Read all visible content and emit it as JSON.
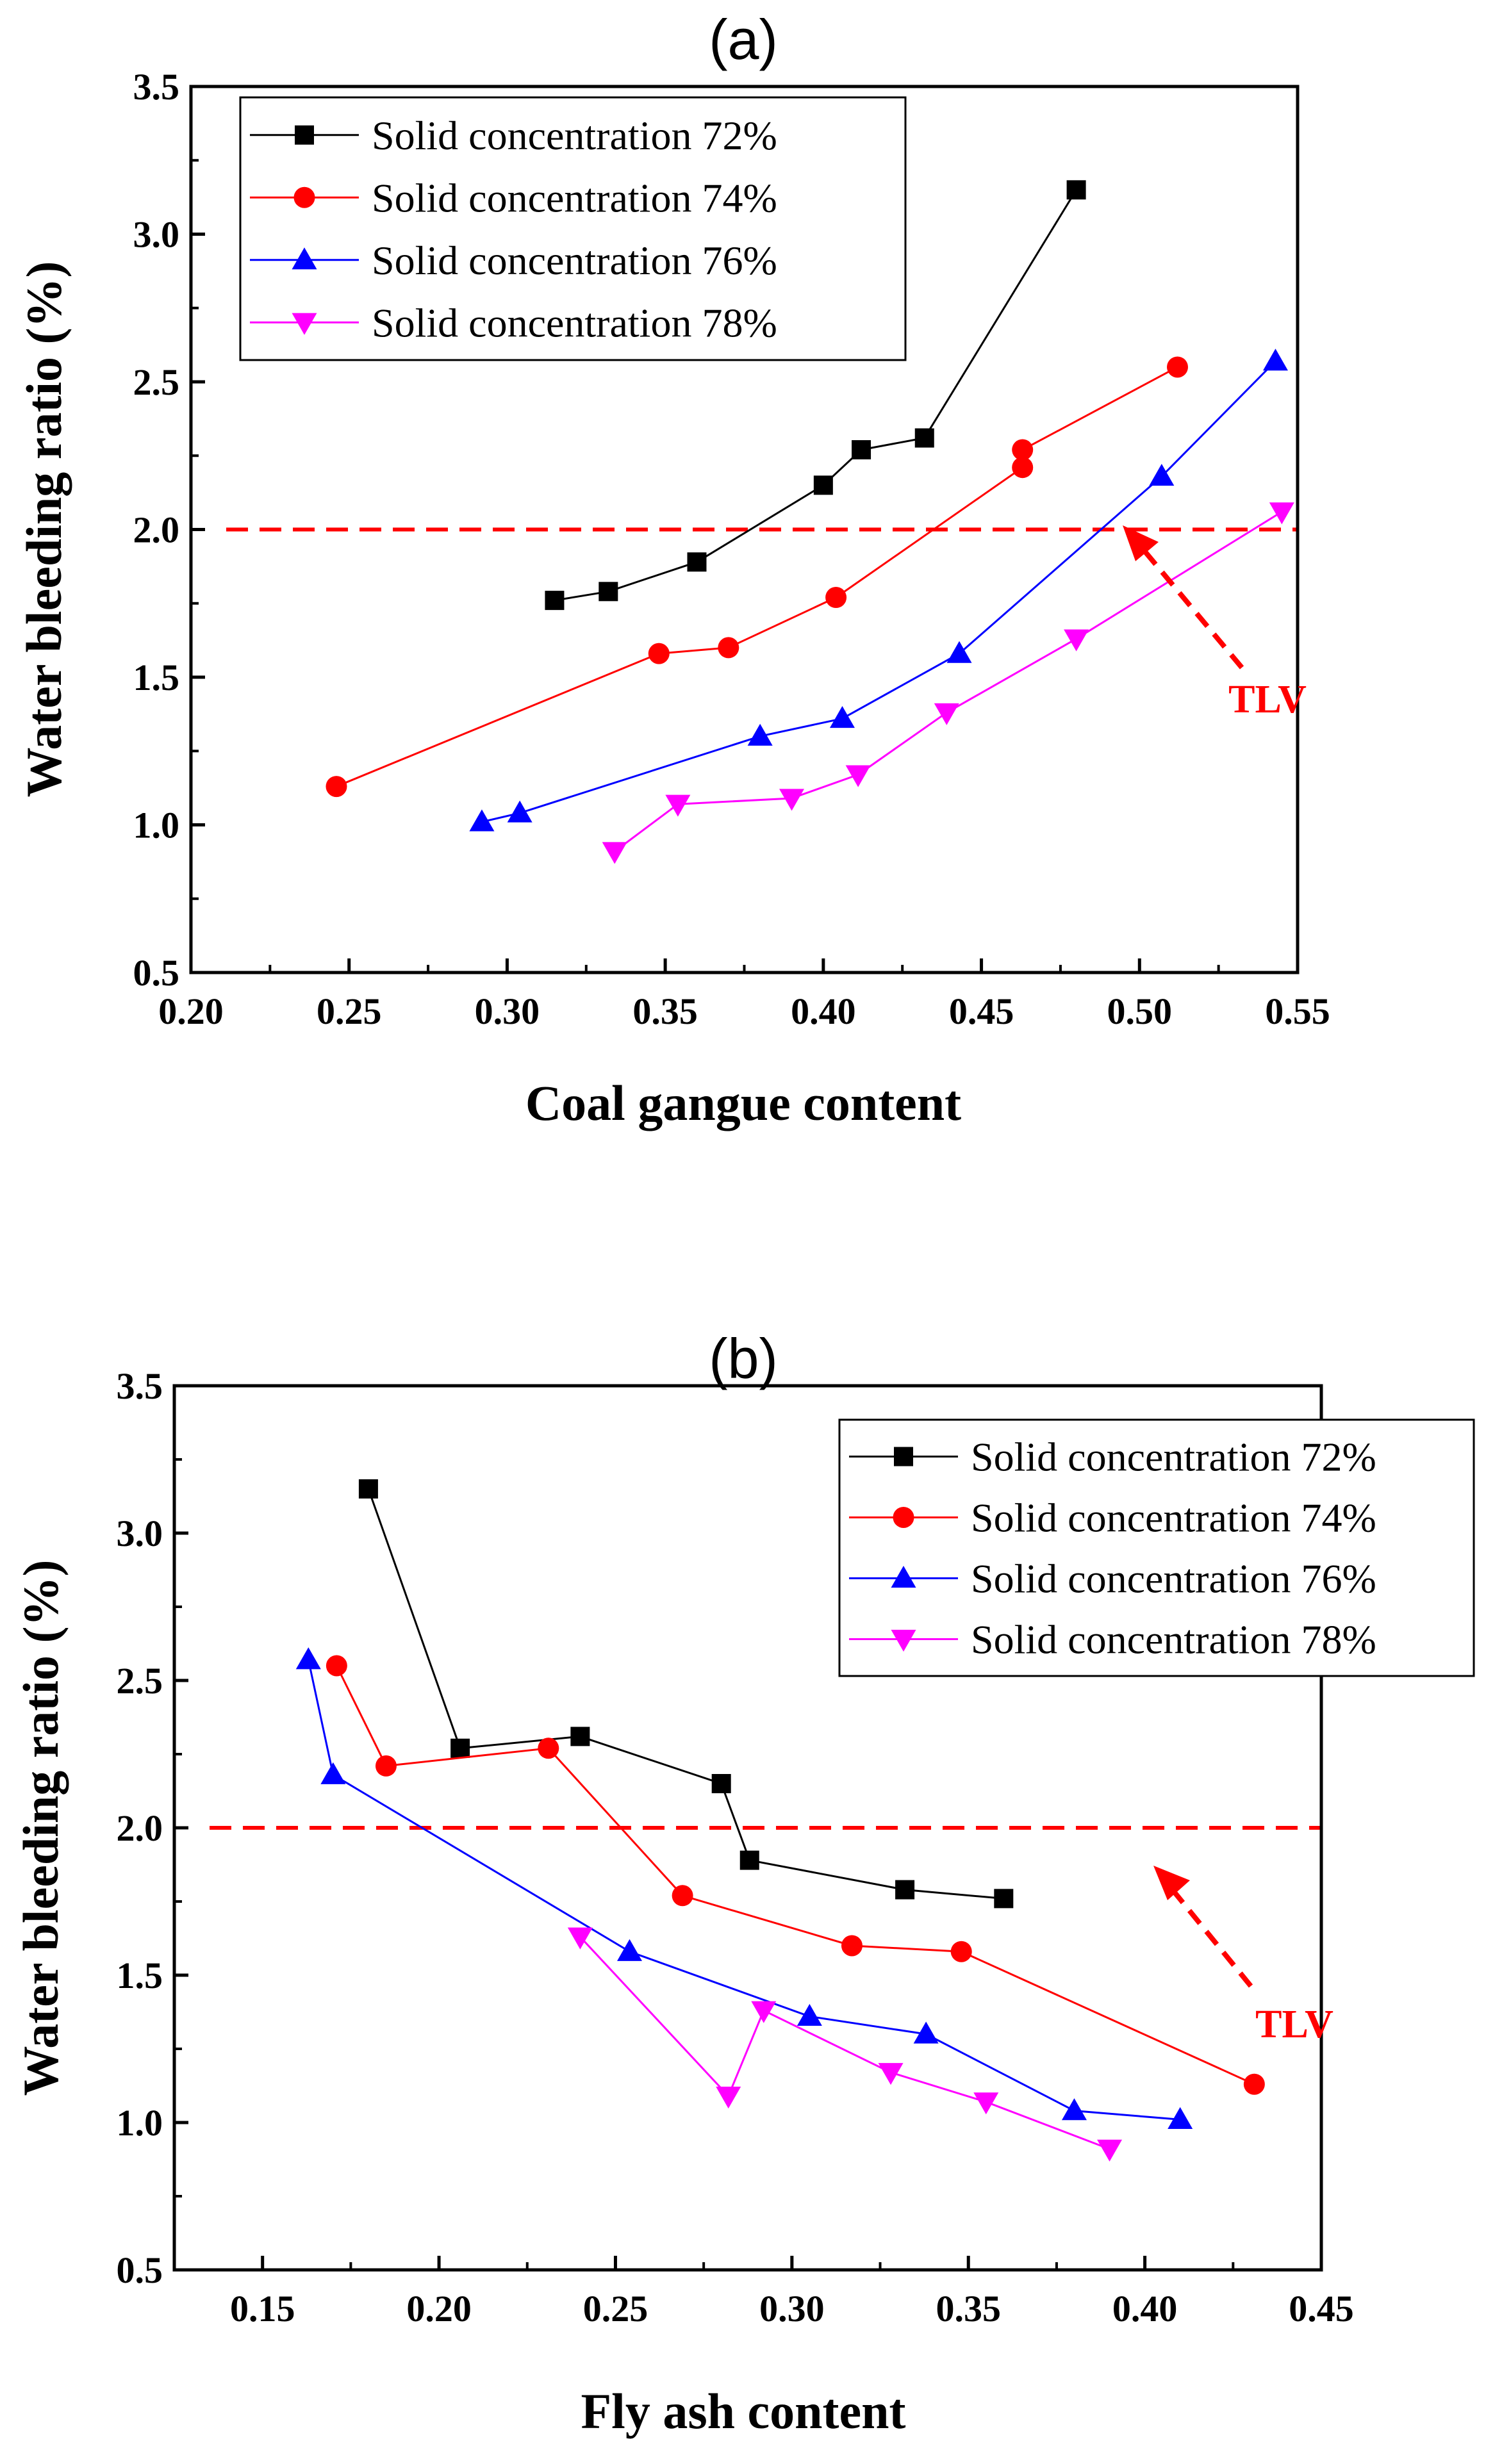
{
  "chart_data": [
    {
      "type": "line",
      "panel_label": "(a)",
      "xlabel": "Coal gangue content",
      "ylabel": "Water bleeding ratio (%)",
      "xlim": [
        0.2,
        0.55
      ],
      "ylim": [
        0.5,
        3.5
      ],
      "xticks": [
        "0.20",
        "0.25",
        "0.30",
        "0.35",
        "0.40",
        "0.45",
        "0.50",
        "0.55"
      ],
      "yticks": [
        "0.5",
        "1.0",
        "1.5",
        "2.0",
        "2.5",
        "3.0",
        "3.5"
      ],
      "legend_position": "top-left",
      "grid": false,
      "threshold": {
        "value": 2.0,
        "label": "TLV",
        "color": "#ff0000"
      },
      "series": [
        {
          "name": "Solid concentration 72%",
          "color": "#000000",
          "marker": "square",
          "x": [
            0.315,
            0.332,
            0.36,
            0.4,
            0.412,
            0.432,
            0.48
          ],
          "y": [
            1.76,
            1.79,
            1.89,
            2.15,
            2.27,
            2.31,
            3.15
          ]
        },
        {
          "name": "Solid concentration 74%",
          "color": "#ff0000",
          "marker": "circle",
          "x": [
            0.246,
            0.348,
            0.37,
            0.404,
            0.463,
            0.463,
            0.512
          ],
          "y": [
            1.13,
            1.58,
            1.6,
            1.77,
            2.21,
            2.27,
            2.55
          ]
        },
        {
          "name": "Solid concentration 76%",
          "color": "#0000ff",
          "marker": "triangle-up",
          "x": [
            0.292,
            0.304,
            0.38,
            0.406,
            0.443,
            0.507,
            0.543
          ],
          "y": [
            1.01,
            1.04,
            1.3,
            1.36,
            1.58,
            2.18,
            2.57
          ]
        },
        {
          "name": "Solid concentration 78%",
          "color": "#ff00ff",
          "marker": "triangle-down",
          "x": [
            0.334,
            0.354,
            0.39,
            0.411,
            0.439,
            0.48,
            0.545
          ],
          "y": [
            0.91,
            1.07,
            1.09,
            1.17,
            1.38,
            1.63,
            2.06
          ]
        }
      ]
    },
    {
      "type": "line",
      "panel_label": "(b)",
      "xlabel": "Fly ash content",
      "ylabel": "Water bleeding ratio (%)",
      "xlim": [
        0.125,
        0.45
      ],
      "ylim": [
        0.5,
        3.5
      ],
      "xticks": [
        "0.15",
        "0.20",
        "0.25",
        "0.30",
        "0.35",
        "0.40",
        "0.45"
      ],
      "yticks": [
        "0.5",
        "1.0",
        "1.5",
        "2.0",
        "2.5",
        "3.0",
        "3.5"
      ],
      "legend_position": "top-right",
      "grid": false,
      "threshold": {
        "value": 2.0,
        "label": "TLV",
        "color": "#ff0000"
      },
      "series": [
        {
          "name": "Solid concentration 72%",
          "color": "#000000",
          "marker": "square",
          "x": [
            0.18,
            0.206,
            0.24,
            0.28,
            0.288,
            0.332,
            0.36
          ],
          "y": [
            3.15,
            2.27,
            2.31,
            2.15,
            1.89,
            1.79,
            1.76
          ]
        },
        {
          "name": "Solid concentration 74%",
          "color": "#ff0000",
          "marker": "circle",
          "x": [
            0.171,
            0.185,
            0.231,
            0.269,
            0.317,
            0.348,
            0.431
          ],
          "y": [
            2.55,
            2.21,
            2.27,
            1.77,
            1.6,
            1.58,
            1.13
          ]
        },
        {
          "name": "Solid concentration 76%",
          "color": "#0000ff",
          "marker": "triangle-up",
          "x": [
            0.163,
            0.17,
            0.254,
            0.305,
            0.338,
            0.38,
            0.41
          ],
          "y": [
            2.57,
            2.18,
            1.58,
            1.36,
            1.3,
            1.04,
            1.01
          ]
        },
        {
          "name": "Solid concentration 78%",
          "color": "#ff00ff",
          "marker": "triangle-down",
          "x": [
            0.24,
            0.282,
            0.292,
            0.328,
            0.355,
            0.39
          ],
          "y": [
            1.63,
            1.09,
            1.38,
            1.17,
            1.07,
            0.91
          ]
        }
      ]
    }
  ]
}
